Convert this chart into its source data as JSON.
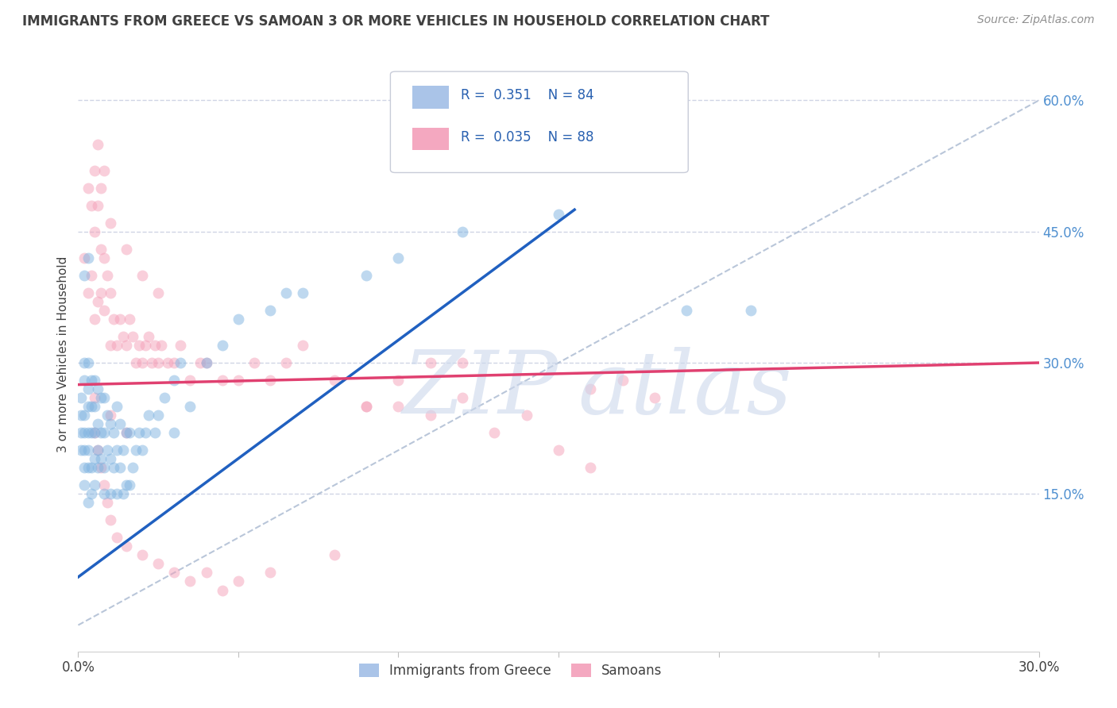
{
  "title": "IMMIGRANTS FROM GREECE VS SAMOAN 3 OR MORE VEHICLES IN HOUSEHOLD CORRELATION CHART",
  "source": "Source: ZipAtlas.com",
  "ylabel": "3 or more Vehicles in Household",
  "xlim": [
    0.0,
    0.3
  ],
  "ylim": [
    -0.03,
    0.65
  ],
  "xticks": [
    0.0,
    0.05,
    0.1,
    0.15,
    0.2,
    0.25,
    0.3
  ],
  "xticklabels": [
    "0.0%",
    "",
    "",
    "",
    "",
    "",
    "30.0%"
  ],
  "yticks_right": [
    0.15,
    0.3,
    0.45,
    0.6
  ],
  "ytick_labels_right": [
    "15.0%",
    "30.0%",
    "45.0%",
    "60.0%"
  ],
  "legend_entries": [
    {
      "label": "Immigrants from Greece",
      "color": "#aac4e8",
      "R": "0.351",
      "N": "84"
    },
    {
      "label": "Samoans",
      "color": "#f4a8c0",
      "R": "0.035",
      "N": "88"
    }
  ],
  "blue_scatter_color": "#7fb3e0",
  "pink_scatter_color": "#f4a0b8",
  "blue_line_color": "#2060c0",
  "pink_line_color": "#e04070",
  "dashed_line_color": "#a8b8d0",
  "background_color": "#ffffff",
  "grid_color": "#d0d5e5",
  "title_color": "#404040",
  "right_tick_color": "#5090d0",
  "scatter_alpha": 0.5,
  "scatter_size": 100,
  "blue_line": {
    "x0": 0.0,
    "x1": 0.155,
    "y0": 0.055,
    "y1": 0.475
  },
  "pink_line": {
    "x0": 0.0,
    "x1": 0.3,
    "y0": 0.275,
    "y1": 0.3
  },
  "dashed_line": {
    "x0": 0.0,
    "x1": 0.3,
    "y0": 0.0,
    "y1": 0.6
  },
  "blue_points_x": [
    0.001,
    0.001,
    0.001,
    0.001,
    0.002,
    0.002,
    0.002,
    0.002,
    0.002,
    0.002,
    0.002,
    0.003,
    0.003,
    0.003,
    0.003,
    0.003,
    0.003,
    0.003,
    0.004,
    0.004,
    0.004,
    0.004,
    0.004,
    0.005,
    0.005,
    0.005,
    0.005,
    0.005,
    0.006,
    0.006,
    0.006,
    0.006,
    0.007,
    0.007,
    0.007,
    0.008,
    0.008,
    0.008,
    0.008,
    0.009,
    0.009,
    0.01,
    0.01,
    0.01,
    0.011,
    0.011,
    0.012,
    0.012,
    0.012,
    0.013,
    0.013,
    0.014,
    0.014,
    0.015,
    0.015,
    0.016,
    0.016,
    0.017,
    0.018,
    0.019,
    0.02,
    0.021,
    0.022,
    0.024,
    0.025,
    0.027,
    0.03,
    0.03,
    0.032,
    0.035,
    0.04,
    0.045,
    0.05,
    0.06,
    0.065,
    0.07,
    0.09,
    0.1,
    0.12,
    0.15,
    0.002,
    0.003,
    0.19,
    0.21
  ],
  "blue_points_y": [
    0.2,
    0.22,
    0.24,
    0.26,
    0.16,
    0.18,
    0.2,
    0.22,
    0.24,
    0.28,
    0.3,
    0.14,
    0.18,
    0.2,
    0.22,
    0.25,
    0.27,
    0.3,
    0.15,
    0.18,
    0.22,
    0.25,
    0.28,
    0.16,
    0.19,
    0.22,
    0.25,
    0.28,
    0.18,
    0.2,
    0.23,
    0.27,
    0.19,
    0.22,
    0.26,
    0.15,
    0.18,
    0.22,
    0.26,
    0.2,
    0.24,
    0.15,
    0.19,
    0.23,
    0.18,
    0.22,
    0.15,
    0.2,
    0.25,
    0.18,
    0.23,
    0.15,
    0.2,
    0.16,
    0.22,
    0.16,
    0.22,
    0.18,
    0.2,
    0.22,
    0.2,
    0.22,
    0.24,
    0.22,
    0.24,
    0.26,
    0.22,
    0.28,
    0.3,
    0.25,
    0.3,
    0.32,
    0.35,
    0.36,
    0.38,
    0.38,
    0.4,
    0.42,
    0.45,
    0.47,
    0.4,
    0.42,
    0.36,
    0.36
  ],
  "pink_points_x": [
    0.002,
    0.003,
    0.004,
    0.005,
    0.005,
    0.006,
    0.006,
    0.007,
    0.007,
    0.008,
    0.008,
    0.009,
    0.01,
    0.01,
    0.011,
    0.012,
    0.013,
    0.014,
    0.015,
    0.016,
    0.017,
    0.018,
    0.019,
    0.02,
    0.021,
    0.022,
    0.023,
    0.024,
    0.025,
    0.026,
    0.028,
    0.03,
    0.032,
    0.035,
    0.038,
    0.04,
    0.045,
    0.05,
    0.055,
    0.06,
    0.065,
    0.07,
    0.08,
    0.09,
    0.1,
    0.11,
    0.12,
    0.005,
    0.006,
    0.007,
    0.008,
    0.009,
    0.01,
    0.012,
    0.015,
    0.02,
    0.025,
    0.03,
    0.035,
    0.04,
    0.045,
    0.05,
    0.06,
    0.08,
    0.003,
    0.004,
    0.005,
    0.006,
    0.007,
    0.008,
    0.01,
    0.015,
    0.02,
    0.025,
    0.16,
    0.17,
    0.18,
    0.005,
    0.01,
    0.015,
    0.09,
    0.1,
    0.11,
    0.12,
    0.13,
    0.14,
    0.15,
    0.16
  ],
  "pink_points_y": [
    0.42,
    0.38,
    0.4,
    0.35,
    0.45,
    0.37,
    0.48,
    0.38,
    0.43,
    0.36,
    0.42,
    0.4,
    0.32,
    0.38,
    0.35,
    0.32,
    0.35,
    0.33,
    0.32,
    0.35,
    0.33,
    0.3,
    0.32,
    0.3,
    0.32,
    0.33,
    0.3,
    0.32,
    0.3,
    0.32,
    0.3,
    0.3,
    0.32,
    0.28,
    0.3,
    0.3,
    0.28,
    0.28,
    0.3,
    0.28,
    0.3,
    0.32,
    0.28,
    0.25,
    0.28,
    0.3,
    0.3,
    0.22,
    0.2,
    0.18,
    0.16,
    0.14,
    0.12,
    0.1,
    0.09,
    0.08,
    0.07,
    0.06,
    0.05,
    0.06,
    0.04,
    0.05,
    0.06,
    0.08,
    0.5,
    0.48,
    0.52,
    0.55,
    0.5,
    0.52,
    0.46,
    0.43,
    0.4,
    0.38,
    0.27,
    0.28,
    0.26,
    0.26,
    0.24,
    0.22,
    0.25,
    0.25,
    0.24,
    0.26,
    0.22,
    0.24,
    0.2,
    0.18
  ]
}
